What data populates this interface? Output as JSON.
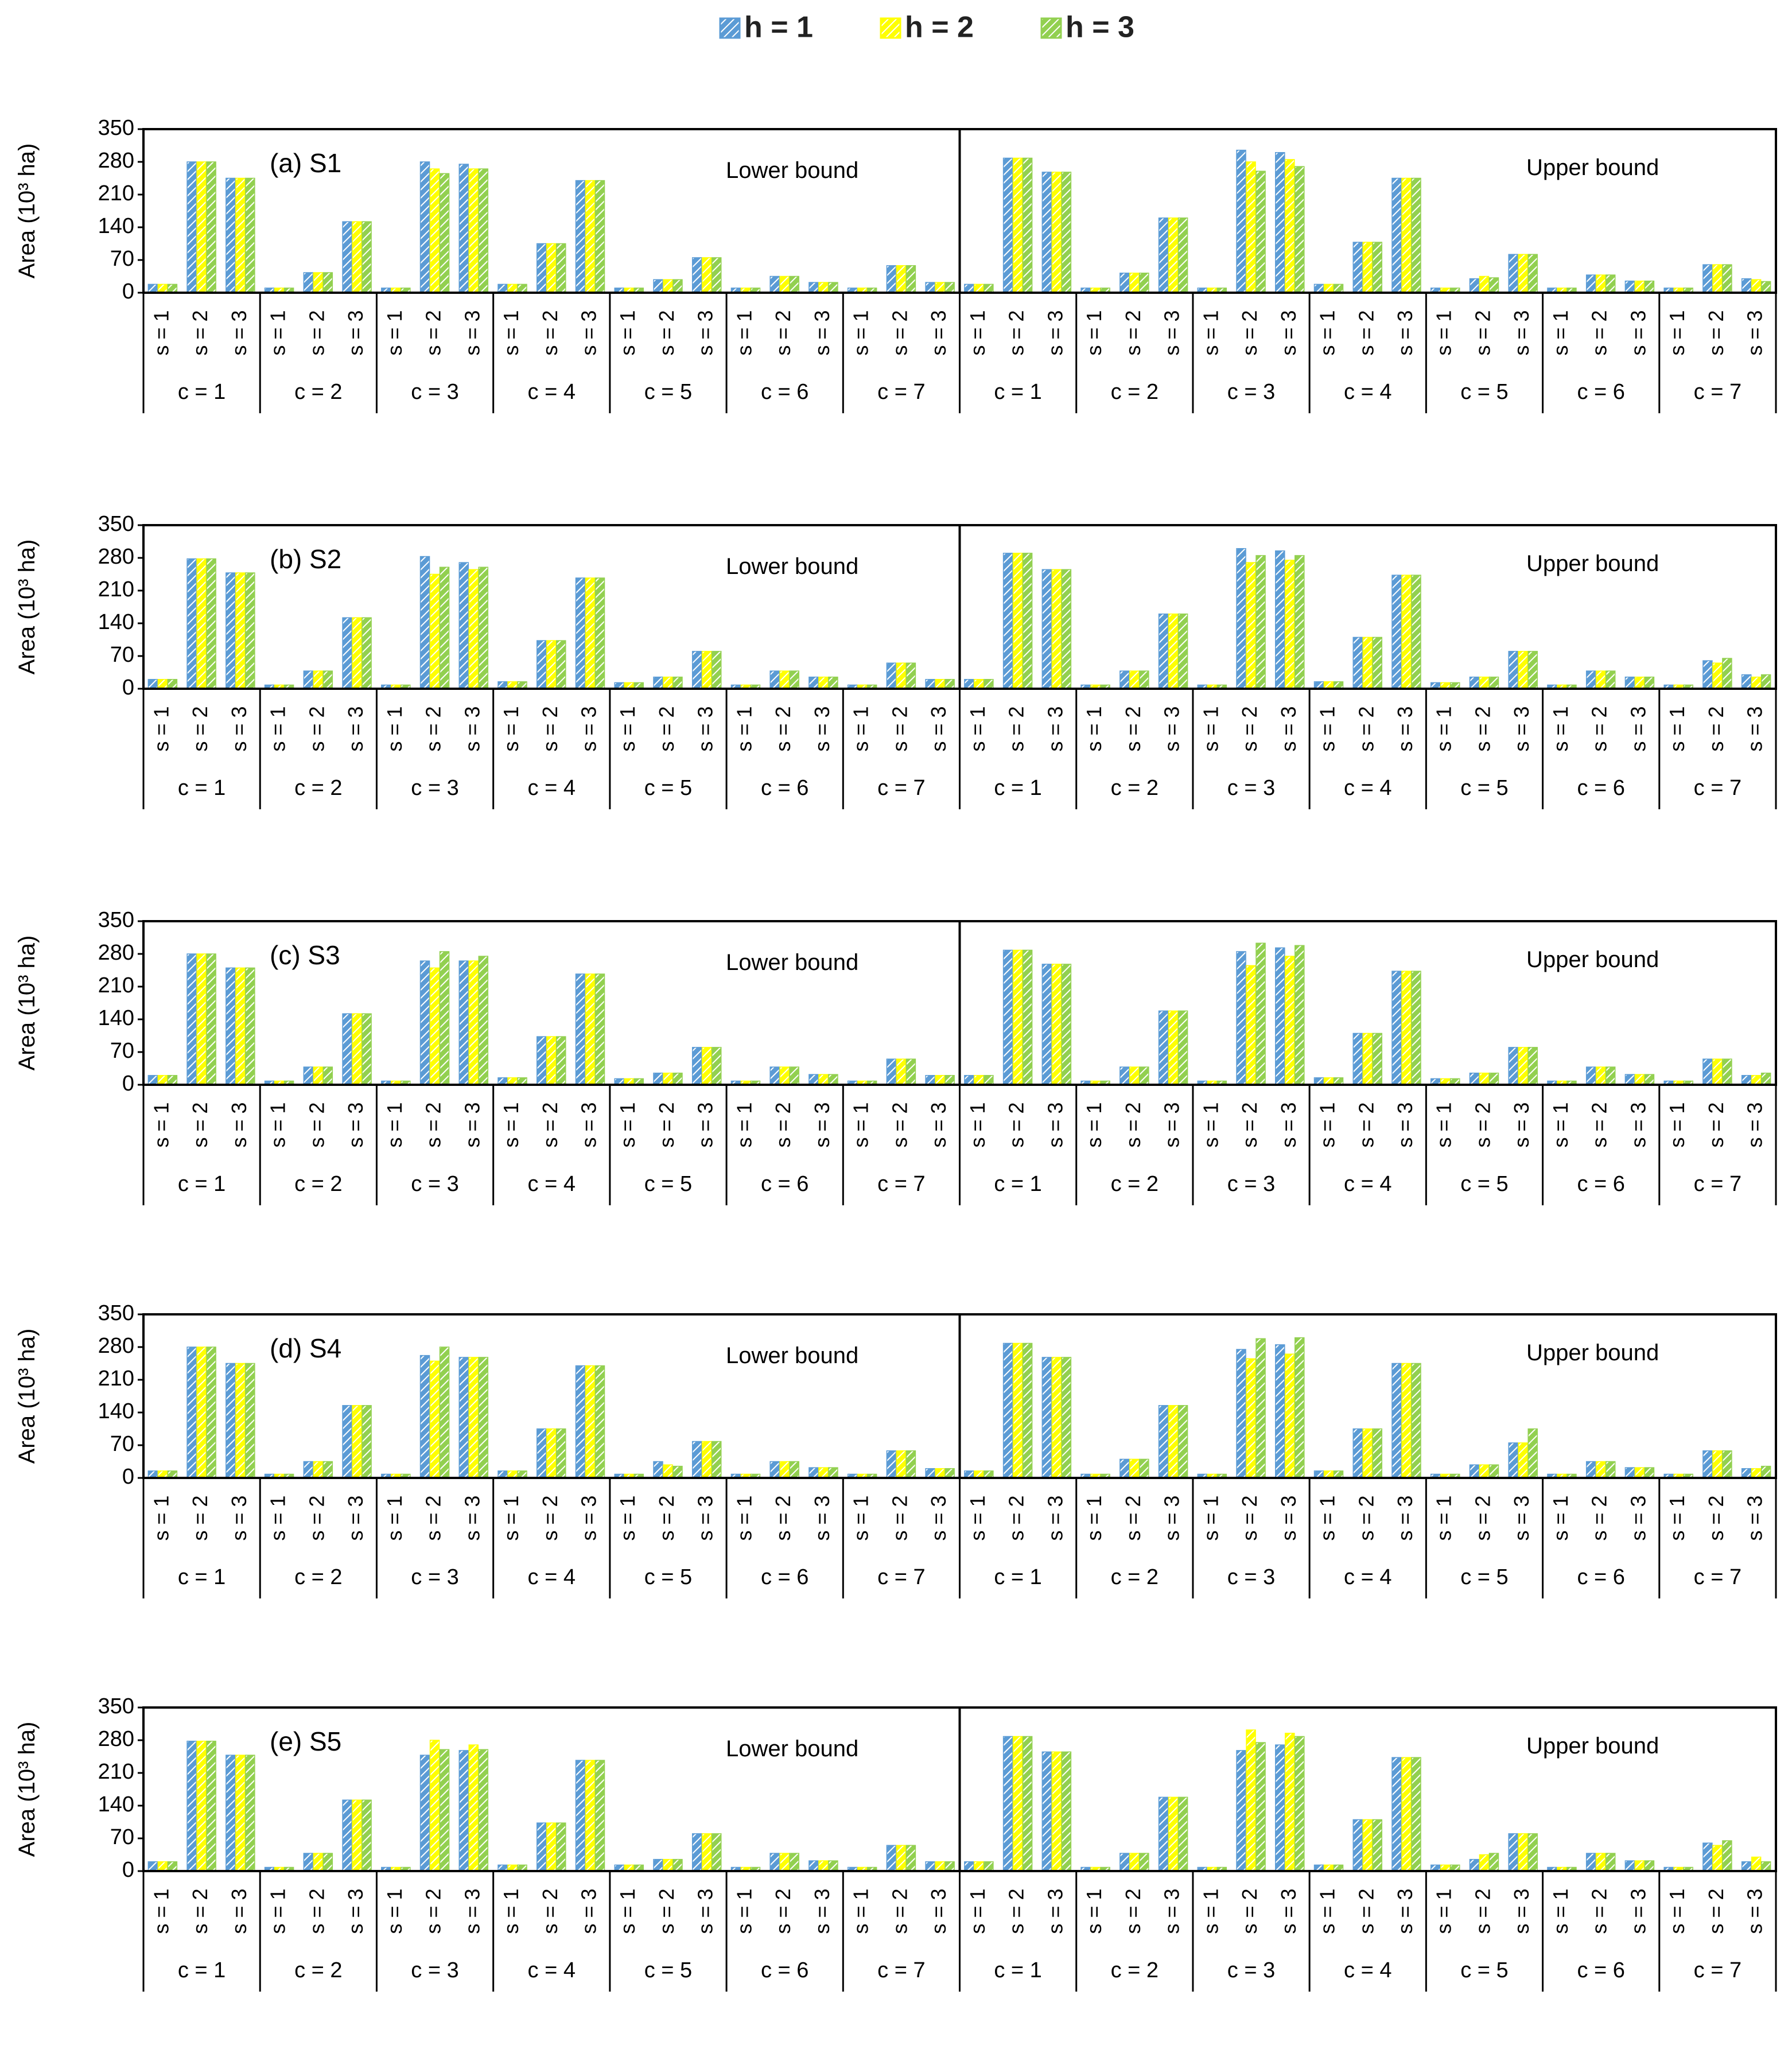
{
  "legend": [
    {
      "label": "h = 1",
      "color": "#5B9BD5"
    },
    {
      "label": "h = 2",
      "color": "#FFFF00"
    },
    {
      "label": "h = 3",
      "color": "#92D050"
    }
  ],
  "chart_data": [
    {
      "type": "bar",
      "panel_label": "(a) S1",
      "ylabel": "Area (10³ ha)",
      "ylim": [
        0,
        350
      ],
      "yticks": [
        "0",
        "70",
        "140",
        "210",
        "280",
        "350"
      ],
      "halves": [
        "Lower bound",
        "Upper bound"
      ],
      "c_labels": [
        "c = 1",
        "c = 2",
        "c = 3",
        "c = 4",
        "c = 5",
        "c = 6",
        "c = 7"
      ],
      "s_labels": [
        "s = 1",
        "s = 2",
        "s = 3"
      ],
      "series": [
        {
          "name": "h = 1",
          "values": [
            18,
            280,
            245,
            10,
            43,
            152,
            10,
            280,
            275,
            18,
            105,
            240,
            10,
            28,
            75,
            10,
            35,
            22,
            10,
            58,
            22,
            18,
            288,
            258,
            10,
            42,
            160,
            10,
            305,
            300,
            18,
            108,
            245,
            10,
            30,
            82,
            10,
            38,
            25,
            10,
            60,
            30
          ]
        },
        {
          "name": "h = 2",
          "values": [
            18,
            280,
            245,
            10,
            43,
            152,
            10,
            265,
            265,
            18,
            105,
            240,
            10,
            28,
            75,
            10,
            35,
            22,
            10,
            58,
            22,
            18,
            288,
            258,
            10,
            42,
            160,
            10,
            280,
            285,
            18,
            108,
            245,
            10,
            35,
            82,
            10,
            38,
            25,
            10,
            60,
            28
          ]
        },
        {
          "name": "h = 3",
          "values": [
            18,
            280,
            245,
            10,
            43,
            152,
            10,
            255,
            265,
            18,
            105,
            240,
            10,
            28,
            75,
            10,
            35,
            22,
            10,
            58,
            22,
            18,
            288,
            258,
            10,
            42,
            160,
            10,
            260,
            270,
            18,
            108,
            245,
            10,
            32,
            82,
            10,
            38,
            25,
            10,
            60,
            24
          ]
        }
      ]
    },
    {
      "type": "bar",
      "panel_label": "(b) S2",
      "ylabel": "Area (10³ ha)",
      "ylim": [
        0,
        350
      ],
      "yticks": [
        "0",
        "70",
        "140",
        "210",
        "280",
        "350"
      ],
      "halves": [
        "Lower bound",
        "Upper bound"
      ],
      "c_labels": [
        "c = 1",
        "c = 2",
        "c = 3",
        "c = 4",
        "c = 5",
        "c = 6",
        "c = 7"
      ],
      "s_labels": [
        "s = 1",
        "s = 2",
        "s = 3"
      ],
      "series": [
        {
          "name": "h = 1",
          "values": [
            20,
            278,
            248,
            8,
            38,
            152,
            8,
            283,
            270,
            15,
            103,
            237,
            13,
            25,
            80,
            8,
            38,
            25,
            8,
            55,
            20,
            20,
            290,
            255,
            8,
            38,
            160,
            8,
            300,
            295,
            15,
            110,
            243,
            13,
            25,
            80,
            8,
            38,
            25,
            8,
            60,
            30
          ]
        },
        {
          "name": "h = 2",
          "values": [
            20,
            278,
            248,
            8,
            38,
            152,
            8,
            245,
            255,
            15,
            103,
            237,
            13,
            25,
            80,
            8,
            38,
            25,
            8,
            55,
            20,
            20,
            290,
            255,
            8,
            38,
            160,
            8,
            270,
            275,
            15,
            110,
            243,
            13,
            25,
            80,
            8,
            38,
            25,
            8,
            55,
            25
          ]
        },
        {
          "name": "h = 3",
          "values": [
            20,
            278,
            248,
            8,
            38,
            152,
            8,
            260,
            260,
            15,
            103,
            237,
            13,
            25,
            80,
            8,
            38,
            25,
            8,
            55,
            20,
            20,
            290,
            255,
            8,
            38,
            160,
            8,
            285,
            285,
            15,
            110,
            243,
            13,
            25,
            80,
            8,
            38,
            25,
            8,
            65,
            30
          ]
        }
      ]
    },
    {
      "type": "bar",
      "panel_label": "(c) S3",
      "ylabel": "Area (10³ ha)",
      "ylim": [
        0,
        350
      ],
      "yticks": [
        "0",
        "70",
        "140",
        "210",
        "280",
        "350"
      ],
      "halves": [
        "Lower bound",
        "Upper bound"
      ],
      "c_labels": [
        "c = 1",
        "c = 2",
        "c = 3",
        "c = 4",
        "c = 5",
        "c = 6",
        "c = 7"
      ],
      "s_labels": [
        "s = 1",
        "s = 2",
        "s = 3"
      ],
      "series": [
        {
          "name": "h = 1",
          "values": [
            20,
            280,
            250,
            8,
            38,
            152,
            8,
            265,
            265,
            15,
            103,
            237,
            13,
            25,
            80,
            8,
            38,
            22,
            8,
            55,
            20,
            20,
            288,
            258,
            8,
            38,
            158,
            8,
            285,
            293,
            15,
            110,
            243,
            13,
            25,
            80,
            8,
            38,
            22,
            8,
            55,
            20
          ]
        },
        {
          "name": "h = 2",
          "values": [
            20,
            280,
            250,
            8,
            38,
            152,
            8,
            250,
            265,
            15,
            103,
            237,
            13,
            25,
            80,
            8,
            38,
            22,
            8,
            55,
            20,
            20,
            288,
            258,
            8,
            38,
            158,
            8,
            255,
            275,
            15,
            110,
            243,
            13,
            25,
            80,
            8,
            38,
            22,
            8,
            55,
            20
          ]
        },
        {
          "name": "h = 3",
          "values": [
            20,
            280,
            250,
            8,
            38,
            152,
            8,
            285,
            275,
            15,
            103,
            237,
            13,
            25,
            80,
            8,
            38,
            22,
            8,
            55,
            20,
            20,
            288,
            258,
            8,
            38,
            158,
            8,
            303,
            298,
            15,
            110,
            243,
            13,
            25,
            80,
            8,
            38,
            22,
            8,
            55,
            25
          ]
        }
      ]
    },
    {
      "type": "bar",
      "panel_label": "(d) S4",
      "ylabel": "Area (10³ ha)",
      "ylim": [
        0,
        350
      ],
      "yticks": [
        "0",
        "70",
        "140",
        "210",
        "280",
        "350"
      ],
      "halves": [
        "Lower bound",
        "Upper bound"
      ],
      "c_labels": [
        "c = 1",
        "c = 2",
        "c = 3",
        "c = 4",
        "c = 5",
        "c = 6",
        "c = 7"
      ],
      "s_labels": [
        "s = 1",
        "s = 2",
        "s = 3"
      ],
      "series": [
        {
          "name": "h = 1",
          "values": [
            15,
            280,
            245,
            8,
            35,
            155,
            8,
            262,
            258,
            15,
            105,
            240,
            8,
            35,
            78,
            8,
            35,
            22,
            8,
            58,
            20,
            15,
            288,
            258,
            8,
            40,
            155,
            8,
            275,
            285,
            15,
            105,
            245,
            8,
            28,
            75,
            8,
            35,
            22,
            8,
            58,
            20
          ]
        },
        {
          "name": "h = 2",
          "values": [
            15,
            280,
            245,
            8,
            35,
            155,
            8,
            250,
            258,
            15,
            105,
            240,
            8,
            28,
            78,
            8,
            35,
            22,
            8,
            58,
            20,
            15,
            288,
            258,
            8,
            40,
            155,
            8,
            255,
            265,
            15,
            105,
            245,
            8,
            28,
            75,
            8,
            35,
            22,
            8,
            58,
            20
          ]
        },
        {
          "name": "h = 3",
          "values": [
            15,
            280,
            245,
            8,
            35,
            155,
            8,
            280,
            258,
            15,
            105,
            240,
            8,
            25,
            78,
            8,
            35,
            22,
            8,
            58,
            20,
            15,
            288,
            258,
            8,
            40,
            155,
            8,
            298,
            300,
            15,
            105,
            245,
            8,
            28,
            105,
            8,
            35,
            22,
            8,
            58,
            25
          ]
        }
      ]
    },
    {
      "type": "bar",
      "panel_label": "(e) S5",
      "ylabel": "Area (10³ ha)",
      "ylim": [
        0,
        350
      ],
      "yticks": [
        "0",
        "70",
        "140",
        "210",
        "280",
        "350"
      ],
      "halves": [
        "Lower bound",
        "Upper bound"
      ],
      "c_labels": [
        "c = 1",
        "c = 2",
        "c = 3",
        "c = 4",
        "c = 5",
        "c = 6",
        "c = 7"
      ],
      "s_labels": [
        "s = 1",
        "s = 2",
        "s = 3"
      ],
      "series": [
        {
          "name": "h = 1",
          "values": [
            20,
            278,
            248,
            8,
            38,
            152,
            8,
            248,
            258,
            13,
            103,
            237,
            13,
            25,
            80,
            8,
            38,
            22,
            8,
            55,
            20,
            20,
            288,
            255,
            8,
            38,
            158,
            8,
            258,
            270,
            13,
            110,
            243,
            13,
            25,
            80,
            8,
            38,
            22,
            8,
            60,
            20
          ]
        },
        {
          "name": "h = 2",
          "values": [
            20,
            278,
            248,
            8,
            38,
            152,
            8,
            280,
            270,
            13,
            103,
            237,
            13,
            25,
            80,
            8,
            38,
            22,
            8,
            55,
            20,
            20,
            288,
            255,
            8,
            38,
            158,
            8,
            302,
            295,
            13,
            110,
            243,
            13,
            35,
            80,
            8,
            38,
            22,
            8,
            55,
            30
          ]
        },
        {
          "name": "h = 3",
          "values": [
            20,
            278,
            248,
            8,
            38,
            152,
            8,
            260,
            260,
            13,
            103,
            237,
            13,
            25,
            80,
            8,
            38,
            22,
            8,
            55,
            20,
            20,
            288,
            255,
            8,
            38,
            158,
            8,
            275,
            288,
            13,
            110,
            243,
            13,
            38,
            80,
            8,
            38,
            22,
            8,
            65,
            20
          ]
        }
      ]
    }
  ]
}
